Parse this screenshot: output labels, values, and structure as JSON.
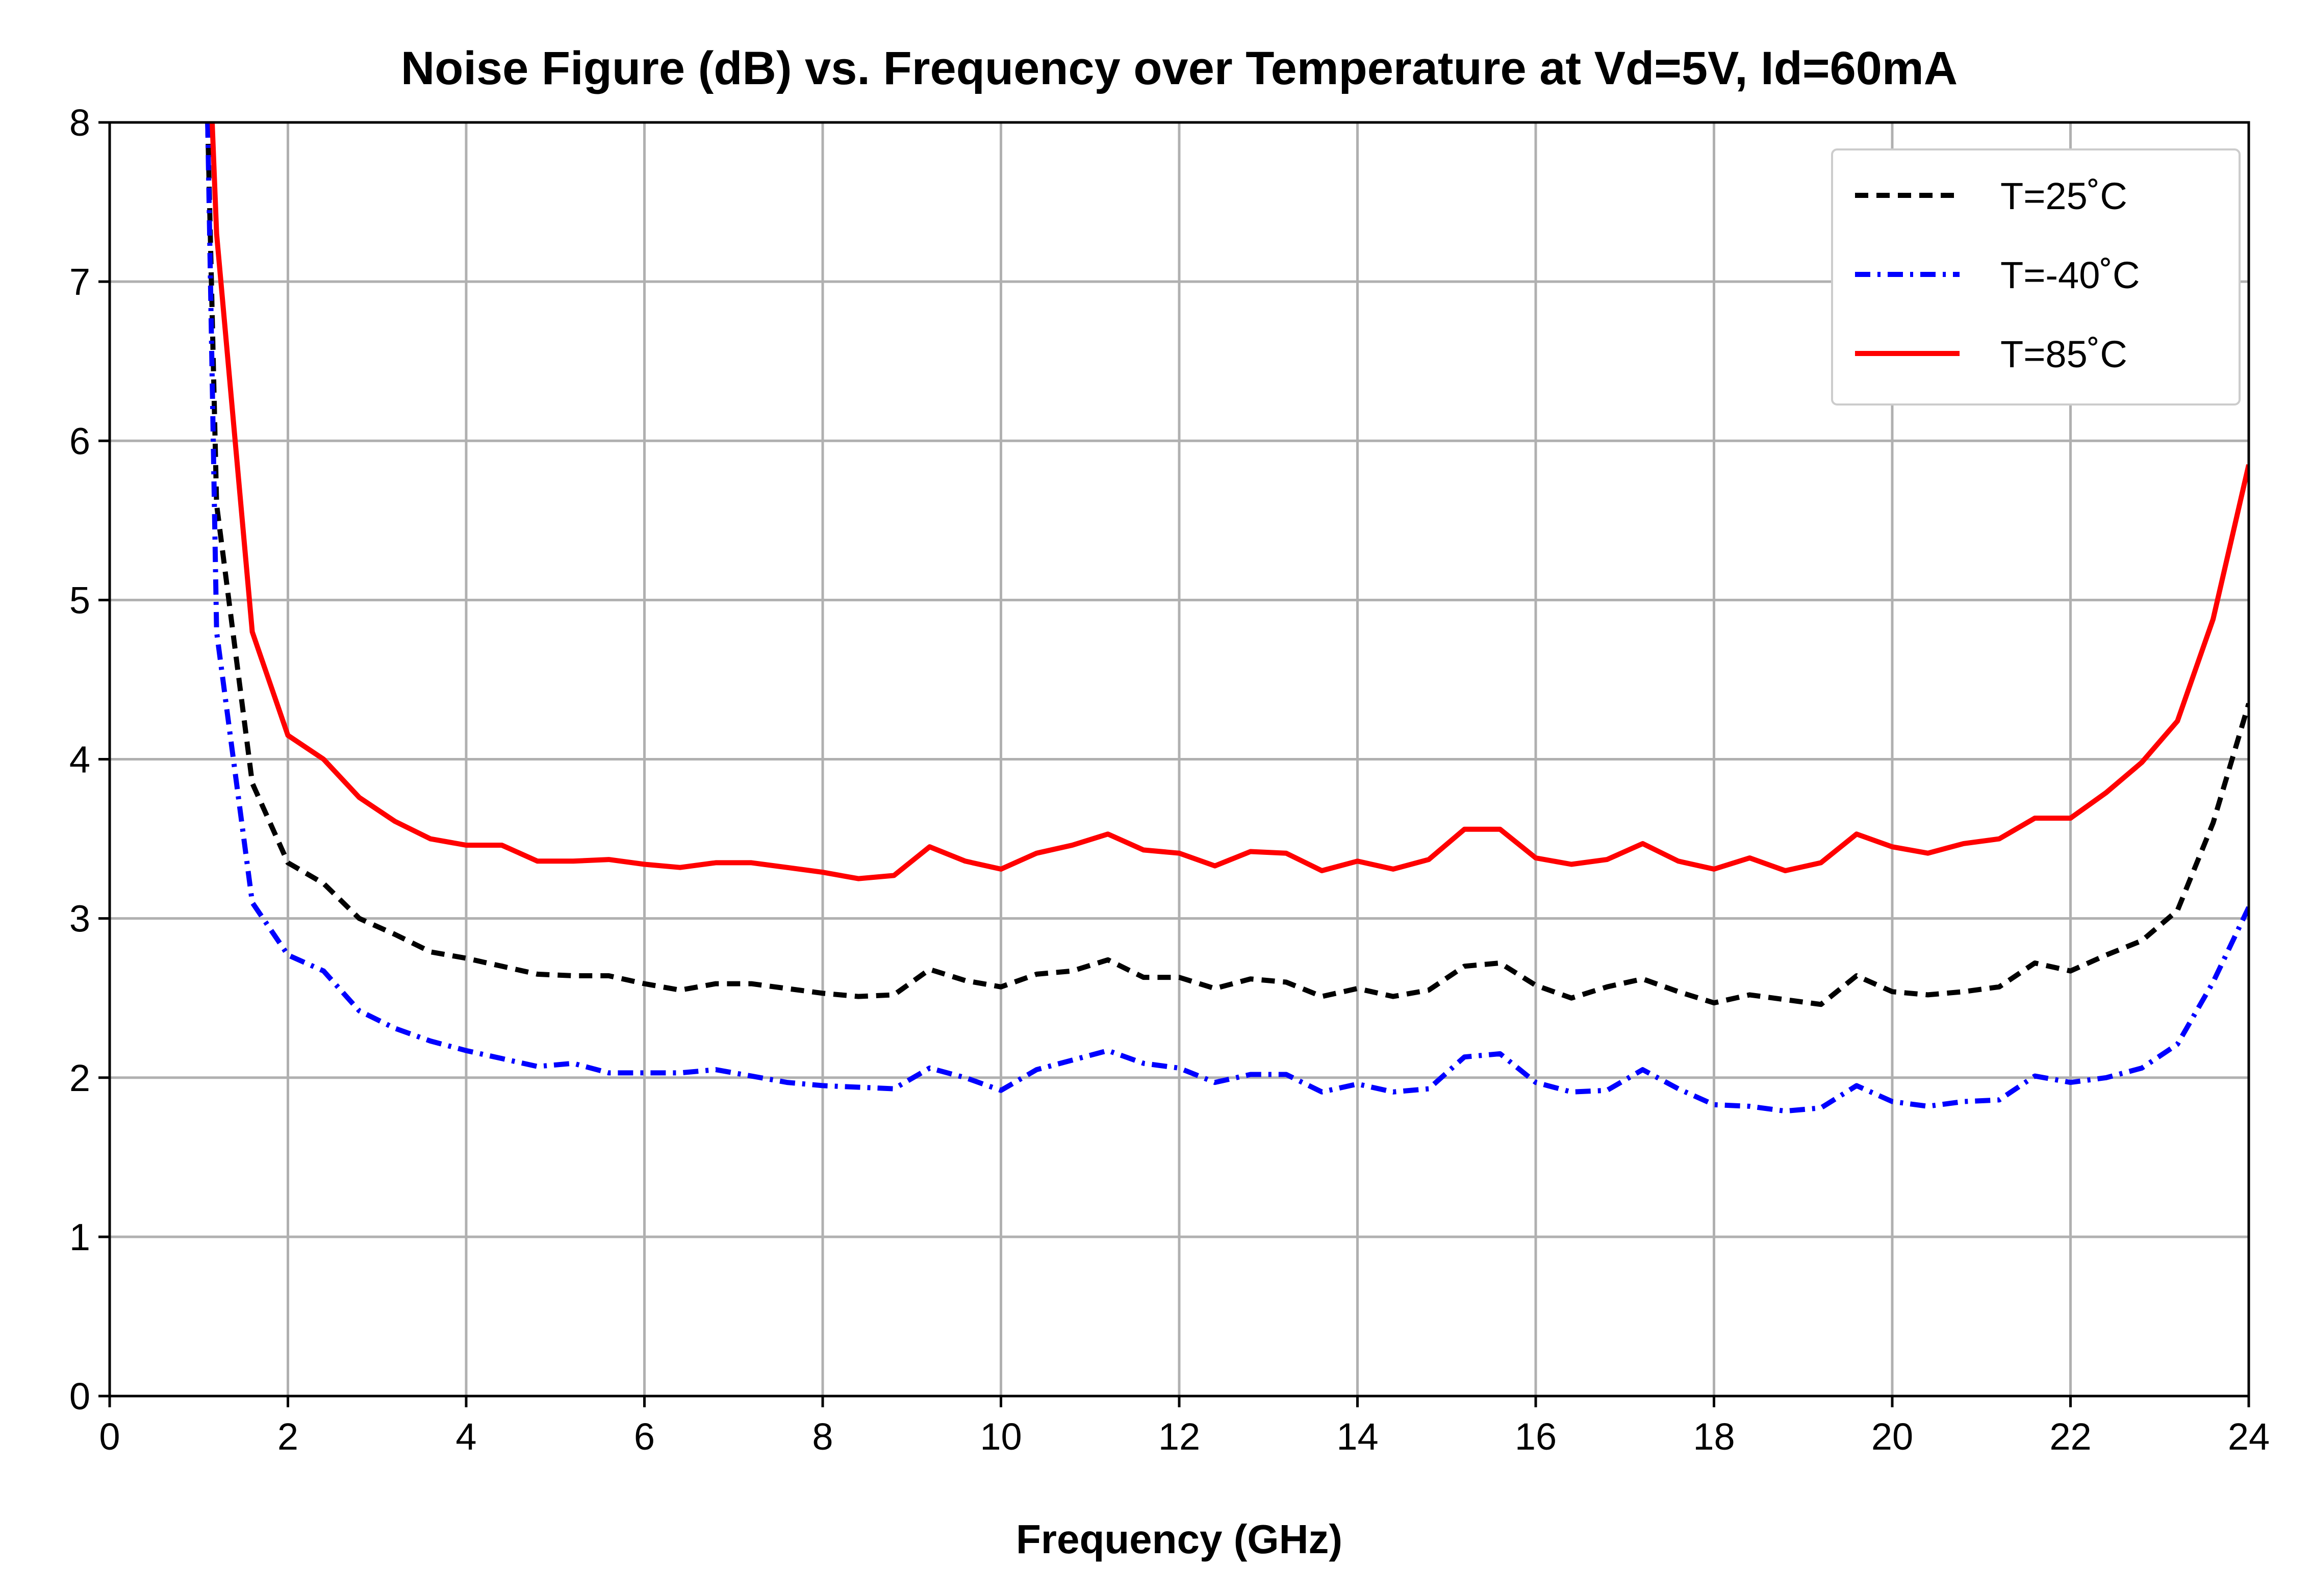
{
  "chart_data": {
    "type": "line",
    "title": "Noise Figure (dB) vs. Frequency over Temperature at Vd=5V, Id=60mA",
    "xlabel": "Frequency (GHz)",
    "ylabel": "",
    "xlim": [
      0,
      24
    ],
    "ylim": [
      0,
      8
    ],
    "xticks": [
      0,
      2,
      4,
      6,
      8,
      10,
      12,
      14,
      16,
      18,
      20,
      22,
      24
    ],
    "yticks": [
      0,
      1,
      2,
      3,
      4,
      5,
      6,
      7,
      8
    ],
    "grid": true,
    "legend_position": "top-right",
    "series": [
      {
        "name": "T=25˚C",
        "color": "#000000",
        "style": "dashed",
        "x": [
          1.1,
          1.2,
          1.6,
          2.0,
          2.4,
          2.8,
          3.2,
          3.6,
          4.0,
          4.4,
          4.8,
          5.2,
          5.6,
          6.0,
          6.4,
          6.8,
          7.2,
          7.6,
          8.0,
          8.4,
          8.8,
          9.2,
          9.6,
          10.0,
          10.4,
          10.8,
          11.2,
          11.6,
          12.0,
          12.4,
          12.8,
          13.2,
          13.6,
          14.0,
          14.4,
          14.8,
          15.2,
          15.6,
          16.0,
          16.4,
          16.8,
          17.2,
          17.6,
          18.0,
          18.4,
          18.8,
          19.2,
          19.6,
          20.0,
          20.4,
          20.8,
          21.2,
          21.6,
          22.0,
          22.4,
          22.8,
          23.2,
          23.6,
          24.0
        ],
        "y": [
          8.0,
          5.6,
          3.85,
          3.35,
          3.22,
          3.0,
          2.9,
          2.79,
          2.75,
          2.7,
          2.65,
          2.64,
          2.64,
          2.59,
          2.55,
          2.59,
          2.59,
          2.56,
          2.53,
          2.51,
          2.52,
          2.68,
          2.61,
          2.57,
          2.65,
          2.67,
          2.74,
          2.63,
          2.63,
          2.56,
          2.62,
          2.6,
          2.51,
          2.56,
          2.51,
          2.55,
          2.7,
          2.72,
          2.58,
          2.5,
          2.57,
          2.62,
          2.54,
          2.47,
          2.52,
          2.49,
          2.46,
          2.64,
          2.54,
          2.52,
          2.54,
          2.57,
          2.72,
          2.67,
          2.77,
          2.86,
          3.05,
          3.6,
          4.35
        ]
      },
      {
        "name": "T=-40˚C",
        "color": "#0000ff",
        "style": "dashdot",
        "x": [
          1.1,
          1.2,
          1.6,
          2.0,
          2.4,
          2.8,
          3.2,
          3.6,
          4.0,
          4.4,
          4.8,
          5.2,
          5.6,
          6.0,
          6.4,
          6.8,
          7.2,
          7.6,
          8.0,
          8.4,
          8.8,
          9.2,
          9.6,
          10.0,
          10.4,
          10.8,
          11.2,
          11.6,
          12.0,
          12.4,
          12.8,
          13.2,
          13.6,
          14.0,
          14.4,
          14.8,
          15.2,
          15.6,
          16.0,
          16.4,
          16.8,
          17.2,
          17.6,
          18.0,
          18.4,
          18.8,
          19.2,
          19.6,
          20.0,
          20.4,
          20.8,
          21.2,
          21.6,
          22.0,
          22.4,
          22.8,
          23.2,
          23.6,
          24.0
        ],
        "y": [
          8.0,
          4.8,
          3.1,
          2.77,
          2.67,
          2.42,
          2.31,
          2.23,
          2.17,
          2.12,
          2.07,
          2.09,
          2.03,
          2.03,
          2.03,
          2.05,
          2.01,
          1.97,
          1.95,
          1.94,
          1.93,
          2.06,
          2.0,
          1.92,
          2.05,
          2.11,
          2.17,
          2.09,
          2.06,
          1.97,
          2.02,
          2.02,
          1.91,
          1.96,
          1.91,
          1.93,
          2.13,
          2.15,
          1.97,
          1.91,
          1.92,
          2.05,
          1.93,
          1.83,
          1.82,
          1.79,
          1.81,
          1.95,
          1.85,
          1.82,
          1.85,
          1.86,
          2.01,
          1.97,
          2.0,
          2.06,
          2.21,
          2.6,
          3.07
        ]
      },
      {
        "name": "T=85˚C",
        "color": "#ff0000",
        "style": "solid",
        "x": [
          1.15,
          1.2,
          1.6,
          2.0,
          2.4,
          2.8,
          3.2,
          3.6,
          4.0,
          4.4,
          4.8,
          5.2,
          5.6,
          6.0,
          6.4,
          6.8,
          7.2,
          7.6,
          8.0,
          8.4,
          8.8,
          9.2,
          9.6,
          10.0,
          10.4,
          10.8,
          11.2,
          11.6,
          12.0,
          12.4,
          12.8,
          13.2,
          13.6,
          14.0,
          14.4,
          14.8,
          15.2,
          15.6,
          16.0,
          16.4,
          16.8,
          17.2,
          17.6,
          18.0,
          18.4,
          18.8,
          19.2,
          19.6,
          20.0,
          20.4,
          20.8,
          21.2,
          21.6,
          22.0,
          22.4,
          22.8,
          23.2,
          23.6,
          24.0
        ],
        "y": [
          8.0,
          7.3,
          4.8,
          4.15,
          4.0,
          3.76,
          3.61,
          3.5,
          3.46,
          3.46,
          3.36,
          3.36,
          3.37,
          3.34,
          3.32,
          3.35,
          3.35,
          3.32,
          3.29,
          3.25,
          3.27,
          3.45,
          3.36,
          3.31,
          3.41,
          3.46,
          3.53,
          3.43,
          3.41,
          3.33,
          3.42,
          3.41,
          3.3,
          3.36,
          3.31,
          3.37,
          3.56,
          3.56,
          3.38,
          3.34,
          3.37,
          3.47,
          3.36,
          3.31,
          3.38,
          3.3,
          3.35,
          3.53,
          3.45,
          3.41,
          3.47,
          3.5,
          3.63,
          3.63,
          3.79,
          3.98,
          4.24,
          4.88,
          5.85
        ]
      }
    ]
  }
}
